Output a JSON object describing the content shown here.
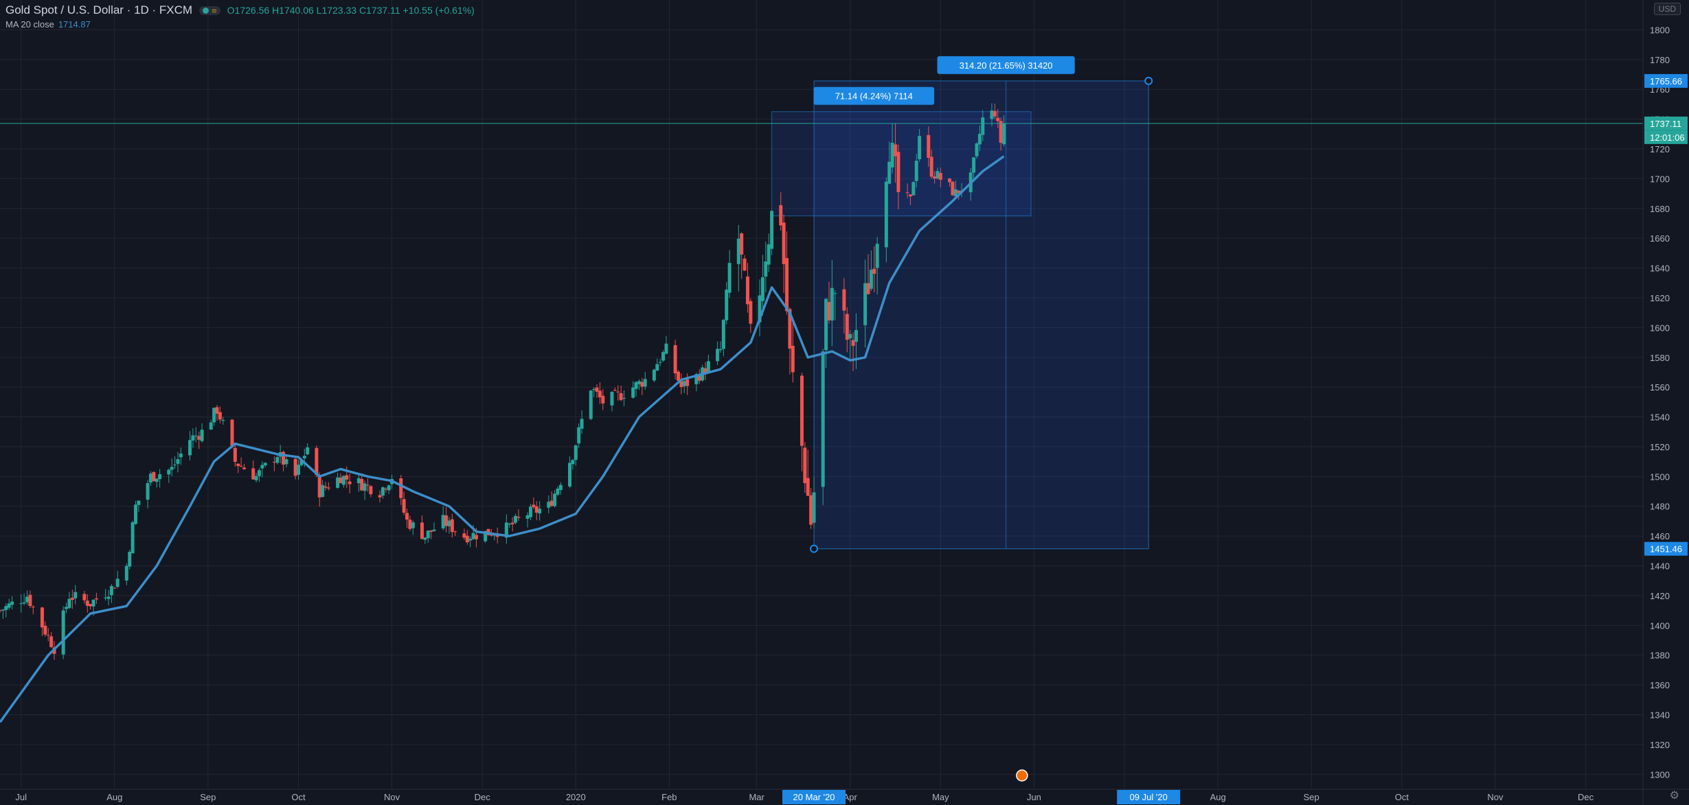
{
  "header": {
    "title": "Gold Spot / U.S. Dollar · 1D · FXCM",
    "ohlc": "O1726.56  H1740.06  L1723.33  C1737.11  +10.55 (+0.61%)",
    "ma_label": "MA 20 close",
    "ma_value": "1714.87",
    "currency": "USD"
  },
  "chart_data": {
    "type": "candlestick",
    "symbol": "Gold Spot / U.S. Dollar",
    "interval": "1D",
    "ylim": [
      1290,
      1820
    ],
    "y_ticks": [
      1300,
      1320,
      1340,
      1360,
      1380,
      1400,
      1420,
      1440,
      1460,
      1480,
      1500,
      1520,
      1540,
      1560,
      1580,
      1600,
      1620,
      1640,
      1660,
      1680,
      1700,
      1720,
      1740,
      1760,
      1780,
      1800
    ],
    "x_ticks": [
      "Jul",
      "Aug",
      "Sep",
      "Oct",
      "Nov",
      "Dec",
      "2020",
      "Feb",
      "Mar",
      "Apr",
      "May",
      "Jun",
      "Jul",
      "Aug",
      "Sep",
      "Oct",
      "Nov",
      "Dec"
    ],
    "x_tick_dates": [
      "2019-07-01",
      "2019-08-01",
      "2019-09-01",
      "2019-10-01",
      "2019-11-01",
      "2019-12-01",
      "2020-01-01",
      "2020-02-01",
      "2020-03-01",
      "2020-04-01",
      "2020-05-01",
      "2020-06-01",
      "2020-07-01",
      "2020-08-01",
      "2020-09-01",
      "2020-10-01",
      "2020-11-01",
      "2020-12-01"
    ],
    "x_range": [
      "2019-06-24",
      "2020-12-20"
    ],
    "close_path": [
      [
        "2019-06-24",
        1410
      ],
      [
        "2019-07-03",
        1420
      ],
      [
        "2019-07-08",
        1400
      ],
      [
        "2019-07-12",
        1385
      ],
      [
        "2019-07-17",
        1420
      ],
      [
        "2019-07-24",
        1415
      ],
      [
        "2019-07-31",
        1425
      ],
      [
        "2019-08-05",
        1440
      ],
      [
        "2019-08-08",
        1480
      ],
      [
        "2019-08-13",
        1500
      ],
      [
        "2019-08-20",
        1505
      ],
      [
        "2019-08-26",
        1525
      ],
      [
        "2019-08-30",
        1530
      ],
      [
        "2019-09-04",
        1545
      ],
      [
        "2019-09-06",
        1535
      ],
      [
        "2019-09-10",
        1510
      ],
      [
        "2019-09-17",
        1500
      ],
      [
        "2019-09-24",
        1515
      ],
      [
        "2019-09-30",
        1500
      ],
      [
        "2019-10-04",
        1520
      ],
      [
        "2019-10-08",
        1490
      ],
      [
        "2019-10-15",
        1500
      ],
      [
        "2019-10-22",
        1495
      ],
      [
        "2019-10-28",
        1490
      ],
      [
        "2019-11-01",
        1500
      ],
      [
        "2019-11-06",
        1470
      ],
      [
        "2019-11-12",
        1460
      ],
      [
        "2019-11-18",
        1470
      ],
      [
        "2019-11-25",
        1460
      ],
      [
        "2019-12-02",
        1462
      ],
      [
        "2019-12-09",
        1465
      ],
      [
        "2019-12-16",
        1475
      ],
      [
        "2019-12-23",
        1480
      ],
      [
        "2019-12-31",
        1515
      ],
      [
        "2020-01-06",
        1560
      ],
      [
        "2020-01-10",
        1550
      ],
      [
        "2020-01-16",
        1555
      ],
      [
        "2020-01-24",
        1565
      ],
      [
        "2020-01-31",
        1585
      ],
      [
        "2020-02-05",
        1560
      ],
      [
        "2020-02-12",
        1570
      ],
      [
        "2020-02-18",
        1585
      ],
      [
        "2020-02-21",
        1640
      ],
      [
        "2020-02-24",
        1660
      ],
      [
        "2020-02-28",
        1590
      ],
      [
        "2020-03-03",
        1640
      ],
      [
        "2020-03-06",
        1675
      ],
      [
        "2020-03-09",
        1675
      ],
      [
        "2020-03-12",
        1580
      ],
      [
        "2020-03-16",
        1520
      ],
      [
        "2020-03-19",
        1470
      ],
      [
        "2020-03-20",
        1490
      ],
      [
        "2020-03-24",
        1610
      ],
      [
        "2020-03-27",
        1625
      ],
      [
        "2020-04-01",
        1585
      ],
      [
        "2020-04-06",
        1620
      ],
      [
        "2020-04-09",
        1650
      ],
      [
        "2020-04-14",
        1725
      ],
      [
        "2020-04-17",
        1690
      ],
      [
        "2020-04-21",
        1685
      ],
      [
        "2020-04-24",
        1730
      ],
      [
        "2020-04-28",
        1705
      ],
      [
        "2020-05-01",
        1700
      ],
      [
        "2020-05-06",
        1690
      ],
      [
        "2020-05-11",
        1700
      ],
      [
        "2020-05-15",
        1740
      ],
      [
        "2020-05-19",
        1745
      ],
      [
        "2020-05-21",
        1725
      ],
      [
        "2020-05-22",
        1737
      ]
    ],
    "ma_path": [
      [
        "2019-06-24",
        1335
      ],
      [
        "2019-07-10",
        1380
      ],
      [
        "2019-07-24",
        1408
      ],
      [
        "2019-08-05",
        1413
      ],
      [
        "2019-08-15",
        1440
      ],
      [
        "2019-08-26",
        1480
      ],
      [
        "2019-09-03",
        1510
      ],
      [
        "2019-09-10",
        1522
      ],
      [
        "2019-09-24",
        1515
      ],
      [
        "2019-10-01",
        1513
      ],
      [
        "2019-10-08",
        1500
      ],
      [
        "2019-10-15",
        1505
      ],
      [
        "2019-10-24",
        1500
      ],
      [
        "2019-11-01",
        1497
      ],
      [
        "2019-11-08",
        1490
      ],
      [
        "2019-11-20",
        1480
      ],
      [
        "2019-11-29",
        1463
      ],
      [
        "2019-12-10",
        1460
      ],
      [
        "2019-12-20",
        1465
      ],
      [
        "2020-01-01",
        1475
      ],
      [
        "2020-01-10",
        1500
      ],
      [
        "2020-01-22",
        1540
      ],
      [
        "2020-02-05",
        1565
      ],
      [
        "2020-02-18",
        1572
      ],
      [
        "2020-02-28",
        1590
      ],
      [
        "2020-03-06",
        1627
      ],
      [
        "2020-03-12",
        1610
      ],
      [
        "2020-03-18",
        1580
      ],
      [
        "2020-03-26",
        1584
      ],
      [
        "2020-04-01",
        1578
      ],
      [
        "2020-04-06",
        1580
      ],
      [
        "2020-04-14",
        1630
      ],
      [
        "2020-04-24",
        1665
      ],
      [
        "2020-05-05",
        1685
      ],
      [
        "2020-05-15",
        1705
      ],
      [
        "2020-05-22",
        1715
      ]
    ],
    "last_price": "1737.11",
    "countdown": "12:01:06",
    "range_box_small": {
      "from_date": "2020-03-06",
      "to_date": "2020-05-31",
      "top": 1745,
      "bottom": 1675,
      "label": "71.14 (4.24%) 7114"
    },
    "range_box_large": {
      "from_date": "2020-03-20",
      "to_date": "2020-07-09",
      "top": 1765.66,
      "bottom": 1451.46,
      "label": "314.20 (21.65%) 31420"
    },
    "axis_badges": {
      "top": "1765.66",
      "bottom": "1451.46",
      "start_date": "20 Mar '20",
      "end_date": "09 Jul '20"
    },
    "colors": {
      "background": "#131722",
      "up": "#26a69a",
      "down": "#ef5350",
      "ma": "#3d8ec9",
      "range_fill": "#2962ff",
      "badge": "#1e88e5",
      "last_price": "#26a69a",
      "axis_text": "#b2b5be",
      "grid": "#1e222d"
    },
    "grid": true
  }
}
